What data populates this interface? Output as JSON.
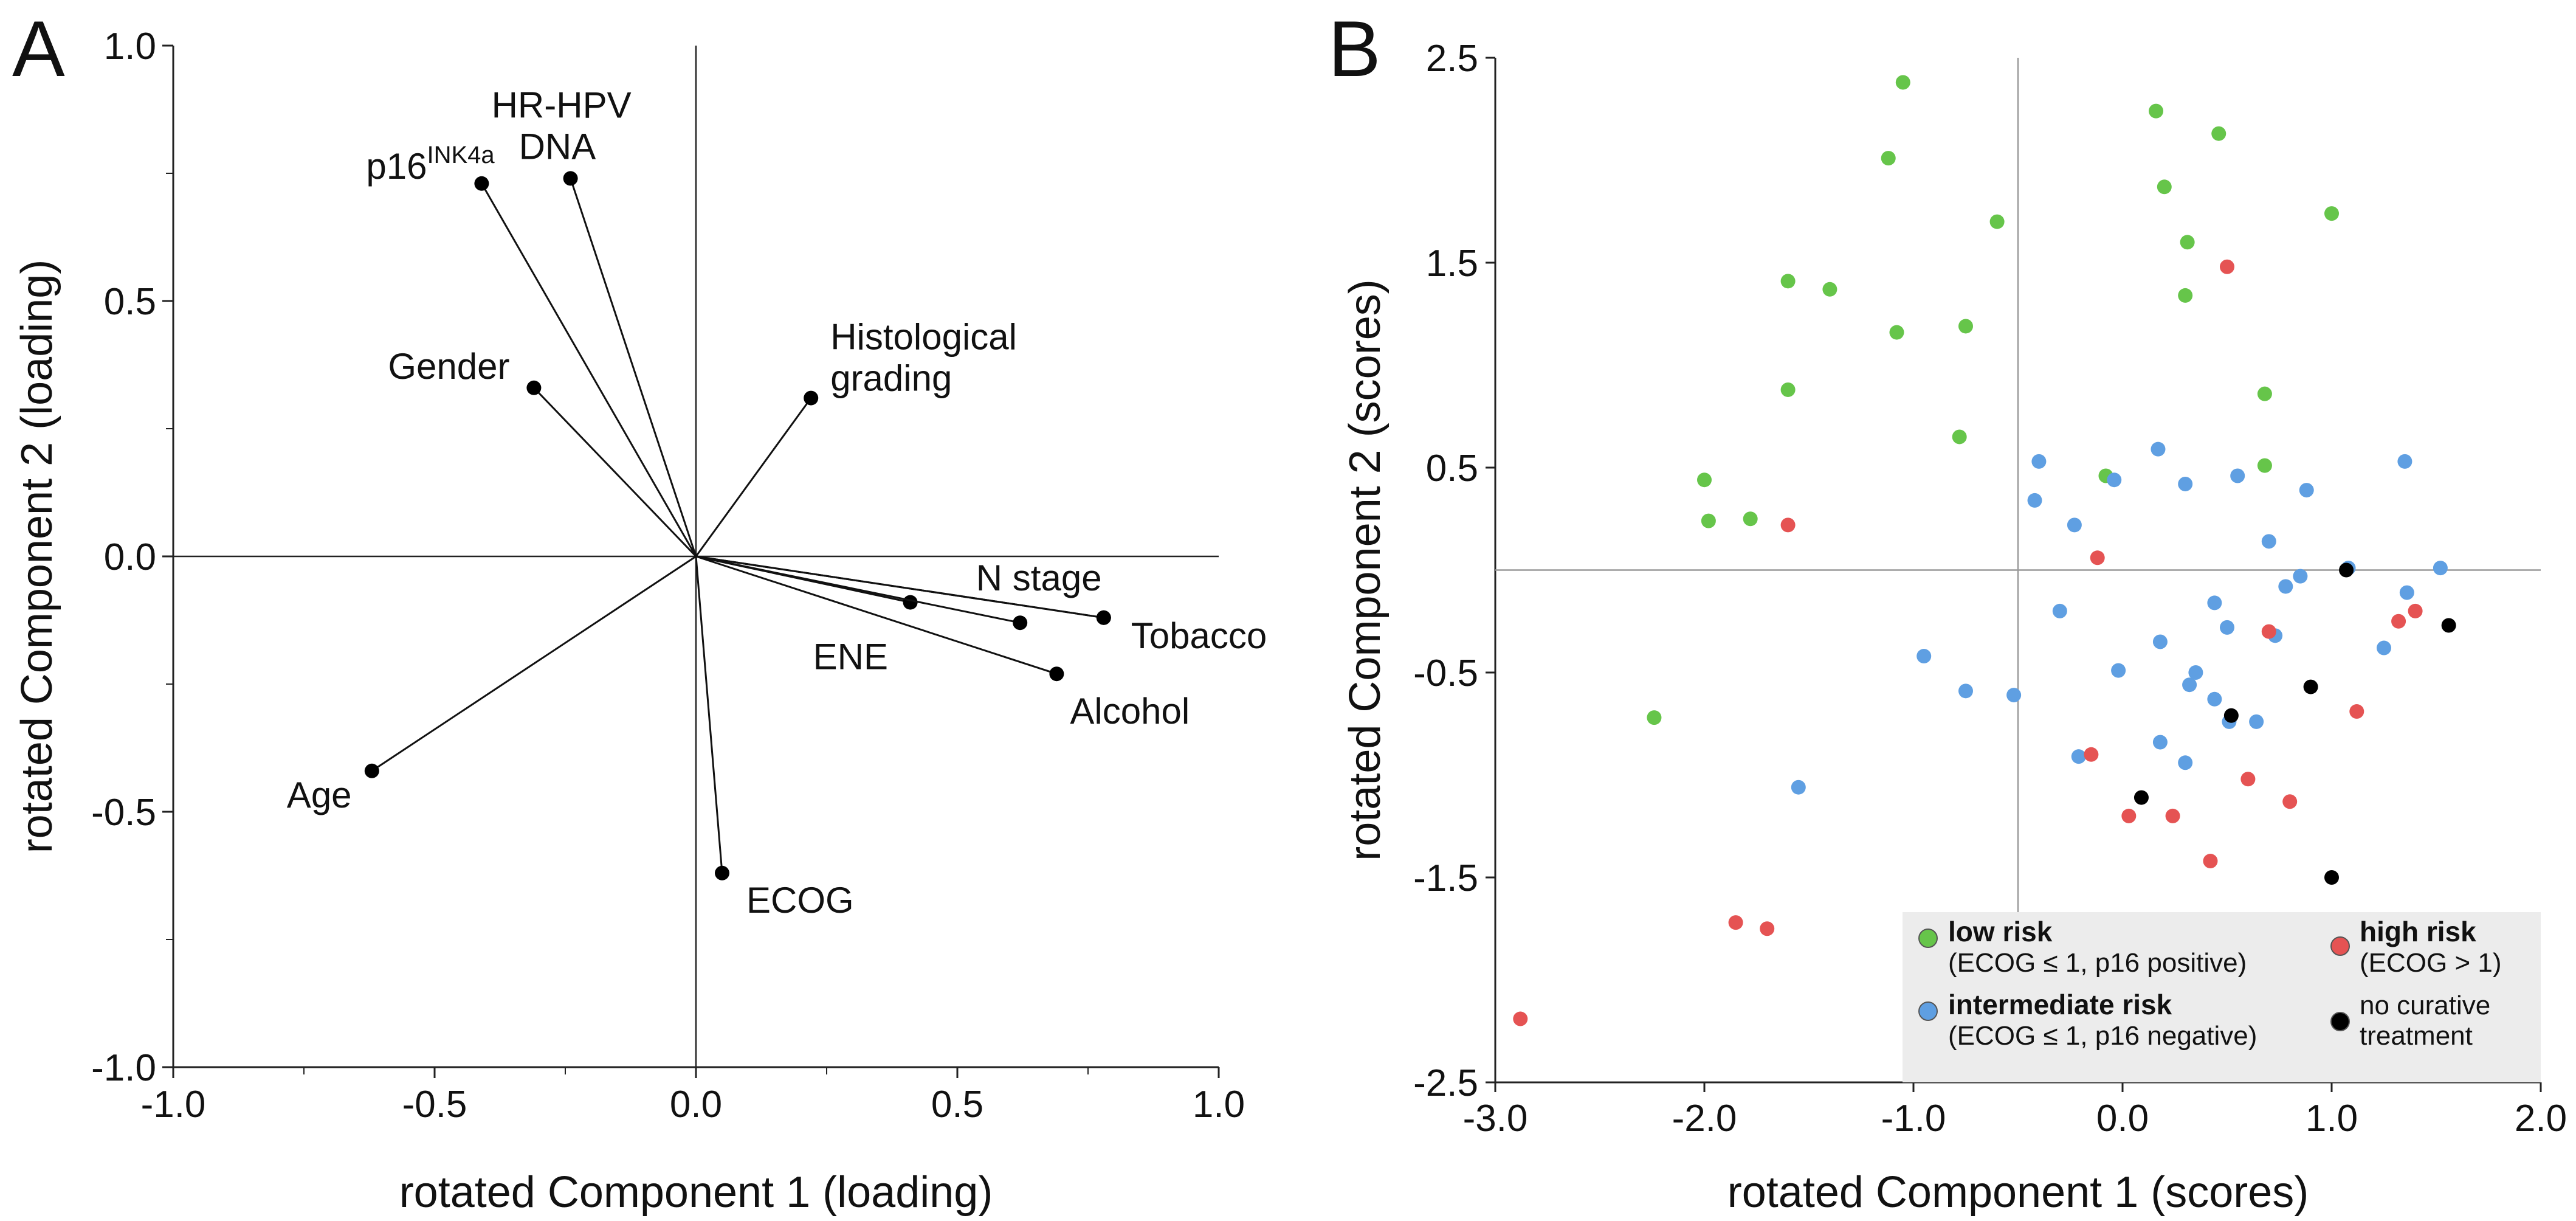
{
  "chart_data": [
    {
      "panel": "A",
      "type": "scatter",
      "subtype": "loading-plot",
      "xlabel": "rotated Component 1 (loading)",
      "ylabel": "rotated Component 2 (loading)",
      "xlim": [
        -1.0,
        1.0
      ],
      "ylim": [
        -1.0,
        1.0
      ],
      "xticks": [
        "-1.0",
        "-0.5",
        "0.0",
        "0.5",
        "1.0"
      ],
      "yticks": [
        "1.0",
        "0.5",
        "0.0",
        "-0.5",
        "-1.0"
      ],
      "reference_lines": {
        "x": 0.0,
        "y": 0.0
      },
      "vectors": [
        {
          "label": "p16",
          "label_sup": "INK4a",
          "x": -0.41,
          "y": 0.73
        },
        {
          "label": "HR-HPV",
          "label_line2": "DNA",
          "x": -0.24,
          "y": 0.74
        },
        {
          "label": "Gender",
          "x": -0.31,
          "y": 0.33
        },
        {
          "label": "Histological",
          "label_line2": "grading",
          "x": 0.22,
          "y": 0.31
        },
        {
          "label": "N stage",
          "x": 0.78,
          "y": -0.12
        },
        {
          "label": "Tobacco",
          "x": 0.78,
          "y": -0.12
        },
        {
          "label": "ENE",
          "x": 0.41,
          "y": -0.09
        },
        {
          "label": "Alcohol",
          "x": 0.69,
          "y": -0.23
        },
        {
          "label": "Age",
          "x": -0.62,
          "y": -0.42
        },
        {
          "label": "ECOG",
          "x": 0.05,
          "y": -0.62
        }
      ],
      "extra_points": [
        {
          "x": 0.62,
          "y": -0.13
        }
      ]
    },
    {
      "panel": "B",
      "type": "scatter",
      "xlabel": "rotated Component 1 (scores)",
      "ylabel": "rotated Component 2 (scores)",
      "xlim": [
        -3.0,
        2.0
      ],
      "ylim": [
        -2.5,
        2.5
      ],
      "xticks": [
        "-3.0",
        "-2.0",
        "-1.0",
        "0.0",
        "1.0",
        "2.0"
      ],
      "yticks": [
        "2.5",
        "1.5",
        "0.5",
        "-0.5",
        "-1.5",
        "-2.5"
      ],
      "reference_lines": {
        "x": -0.5,
        "y": 0.0
      },
      "legend_position": "bottom-right",
      "series": [
        {
          "name": "low risk",
          "note": "(ECOG ≤ 1, p16 positive)",
          "color": "#66c54a",
          "points": [
            [
              -1.05,
              2.38
            ],
            [
              0.16,
              2.24
            ],
            [
              0.46,
              2.13
            ],
            [
              -1.12,
              2.01
            ],
            [
              0.2,
              1.87
            ],
            [
              -0.6,
              1.7
            ],
            [
              1.0,
              1.74
            ],
            [
              0.31,
              1.6
            ],
            [
              -1.6,
              1.41
            ],
            [
              -1.4,
              1.37
            ],
            [
              0.3,
              1.34
            ],
            [
              -1.08,
              1.16
            ],
            [
              -0.75,
              1.19
            ],
            [
              -1.6,
              0.88
            ],
            [
              0.68,
              0.86
            ],
            [
              -0.78,
              0.65
            ],
            [
              -2.0,
              0.44
            ],
            [
              -0.08,
              0.46
            ],
            [
              0.68,
              0.51
            ],
            [
              -1.98,
              0.24
            ],
            [
              -1.78,
              0.25
            ],
            [
              -2.24,
              -0.72
            ]
          ]
        },
        {
          "name": "intermediate risk",
          "note": "(ECOG ≤ 1, p16 negative)",
          "color": "#5f9fe2",
          "points": [
            [
              -0.4,
              0.53
            ],
            [
              0.17,
              0.59
            ],
            [
              1.35,
              0.53
            ],
            [
              -0.42,
              0.34
            ],
            [
              -0.04,
              0.44
            ],
            [
              0.3,
              0.42
            ],
            [
              0.55,
              0.46
            ],
            [
              0.88,
              0.39
            ],
            [
              -0.23,
              0.22
            ],
            [
              0.7,
              0.14
            ],
            [
              1.08,
              0.01
            ],
            [
              0.85,
              -0.03
            ],
            [
              0.78,
              -0.08
            ],
            [
              1.36,
              -0.11
            ],
            [
              1.52,
              0.01
            ],
            [
              -0.3,
              -0.2
            ],
            [
              0.44,
              -0.16
            ],
            [
              0.5,
              -0.28
            ],
            [
              0.73,
              -0.32
            ],
            [
              0.18,
              -0.35
            ],
            [
              1.25,
              -0.38
            ],
            [
              -0.95,
              -0.42
            ],
            [
              -0.02,
              -0.49
            ],
            [
              0.35,
              -0.5
            ],
            [
              0.32,
              -0.56
            ],
            [
              -0.75,
              -0.59
            ],
            [
              -0.52,
              -0.61
            ],
            [
              0.44,
              -0.63
            ],
            [
              0.64,
              -0.74
            ],
            [
              0.51,
              -0.74
            ],
            [
              0.18,
              -0.84
            ],
            [
              0.3,
              -0.94
            ],
            [
              -0.21,
              -0.91
            ],
            [
              -1.55,
              -1.06
            ]
          ]
        },
        {
          "name": "high risk",
          "note": "(ECOG > 1)",
          "color": "#e55353",
          "points": [
            [
              0.5,
              1.48
            ],
            [
              -1.6,
              0.22
            ],
            [
              -0.12,
              0.06
            ],
            [
              0.7,
              -0.3
            ],
            [
              1.4,
              -0.2
            ],
            [
              1.32,
              -0.25
            ],
            [
              1.12,
              -0.69
            ],
            [
              -0.15,
              -0.9
            ],
            [
              0.6,
              -1.02
            ],
            [
              0.8,
              -1.13
            ],
            [
              0.03,
              -1.2
            ],
            [
              0.24,
              -1.2
            ],
            [
              0.42,
              -1.42
            ],
            [
              -1.85,
              -1.72
            ],
            [
              -1.7,
              -1.75
            ],
            [
              -2.88,
              -2.19
            ]
          ]
        },
        {
          "name": "no curative treatment",
          "color": "#000000",
          "points": [
            [
              1.07,
              0.0
            ],
            [
              1.56,
              -0.27
            ],
            [
              0.9,
              -0.57
            ],
            [
              0.52,
              -0.71
            ],
            [
              0.09,
              -1.11
            ],
            [
              1.0,
              -1.5
            ]
          ]
        }
      ]
    }
  ],
  "panels": {
    "a_letter": "A",
    "b_letter": "B"
  }
}
